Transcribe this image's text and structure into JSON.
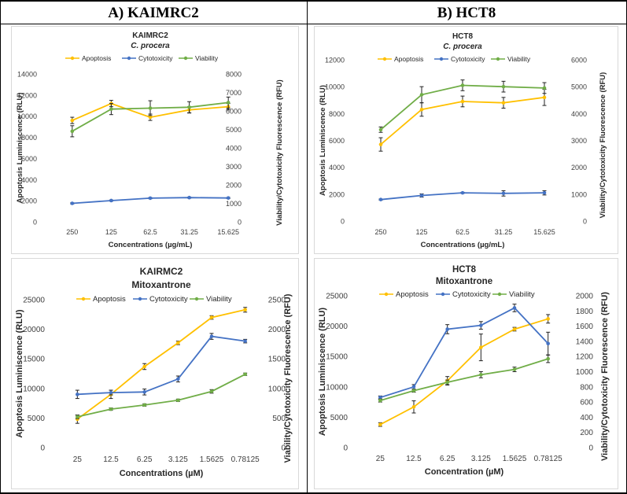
{
  "table": {
    "headers": [
      "A) KAIMRC2",
      "B) HCT8"
    ]
  },
  "colors": {
    "apoptosis": "#FFC000",
    "cytotoxicity": "#4472C4",
    "viability": "#70AD47"
  },
  "chart_data": [
    {
      "type": "line",
      "title": "KAIMRC2",
      "subtitle": "C. procera",
      "subtitle_italic": true,
      "categories": [
        "250",
        "125",
        "62.5",
        "31.25",
        "15.625"
      ],
      "xlabel": "Concentrations (µg/mL)",
      "ylabel": "Apoptosis Luminiscence (RLU)",
      "y2label": "Viability/Cytotoxicity Fluorescence (RFU)",
      "ylim": [
        0,
        14000
      ],
      "yticks": [
        "0",
        "2000",
        "4000",
        "6000",
        "8000",
        "10000",
        "12000",
        "14000"
      ],
      "y2lim": [
        0,
        8000
      ],
      "y2ticks": [
        "0",
        "1000",
        "2000",
        "3000",
        "4000",
        "5000",
        "6000",
        "7000",
        "8000"
      ],
      "series": [
        {
          "name": "Apoptosis",
          "axis": "left",
          "values": [
            9600,
            11200,
            9900,
            10600,
            10900
          ],
          "errors": [
            300,
            300,
            300,
            300,
            300
          ]
        },
        {
          "name": "Cytotoxicity",
          "axis": "right",
          "values": [
            1000,
            1150,
            1280,
            1310,
            1290
          ],
          "errors": [
            30,
            30,
            30,
            30,
            30
          ]
        },
        {
          "name": "Viability",
          "axis": "right",
          "values": [
            4900,
            6100,
            6150,
            6200,
            6450
          ],
          "errors": [
            300,
            300,
            400,
            300,
            300
          ]
        }
      ]
    },
    {
      "type": "line",
      "title": "HCT8",
      "subtitle": "C. procera",
      "subtitle_italic": true,
      "categories": [
        "250",
        "125",
        "62.5",
        "31.25",
        "15.625"
      ],
      "xlabel": "Concentrations (µg/mL)",
      "ylabel": "Apoptosis Luminiscence (RLU)",
      "y2label": "Viability/Cytotoxicity Fluorescence (RFU)",
      "ylim": [
        0,
        12000
      ],
      "yticks": [
        "0",
        "2000",
        "4000",
        "6000",
        "8000",
        "10000",
        "12000"
      ],
      "y2lim": [
        0,
        6000
      ],
      "y2ticks": [
        "0",
        "1000",
        "2000",
        "3000",
        "4000",
        "5000",
        "6000"
      ],
      "series": [
        {
          "name": "Apoptosis",
          "axis": "left",
          "values": [
            5700,
            8300,
            8900,
            8800,
            9200
          ],
          "errors": [
            500,
            500,
            400,
            400,
            600
          ]
        },
        {
          "name": "Cytotoxicity",
          "axis": "right",
          "values": [
            800,
            950,
            1050,
            1030,
            1050
          ],
          "errors": [
            20,
            60,
            20,
            100,
            80
          ]
        },
        {
          "name": "Viability",
          "axis": "right",
          "values": [
            3400,
            4700,
            5050,
            5000,
            4950
          ],
          "errors": [
            100,
            300,
            200,
            200,
            200
          ]
        }
      ]
    },
    {
      "type": "line",
      "title": "KAIRMC2",
      "subtitle": "Mitoxantrone",
      "subtitle_italic": false,
      "categories": [
        "25",
        "12.5",
        "6.25",
        "3.125",
        "1.5625",
        "0.78125"
      ],
      "xlabel": "Concentrations (µM)",
      "ylabel": "Apoptosis Luminiscence (RLU)",
      "y2label": "Viability/Cytotoxicity Fluorescence (RFU)",
      "ylim": [
        0,
        25000
      ],
      "yticks": [
        "0",
        "5000",
        "10000",
        "15000",
        "20000",
        "25000"
      ],
      "y2lim": [
        0,
        2500
      ],
      "y2ticks": [
        "0",
        "500",
        "1000",
        "1500",
        "2000",
        "2500"
      ],
      "series": [
        {
          "name": "Apoptosis",
          "axis": "left",
          "values": [
            4800,
            9000,
            13700,
            17700,
            22000,
            23300
          ],
          "errors": [
            700,
            700,
            500,
            300,
            300,
            400
          ]
        },
        {
          "name": "Cytotoxicity",
          "axis": "right",
          "values": [
            900,
            930,
            940,
            1160,
            1880,
            1800
          ],
          "errors": [
            70,
            40,
            50,
            50,
            50,
            30
          ]
        },
        {
          "name": "Viability",
          "axis": "right",
          "values": [
            520,
            650,
            720,
            800,
            950,
            1240
          ],
          "errors": [
            30,
            20,
            20,
            20,
            30,
            20
          ]
        }
      ]
    },
    {
      "type": "line",
      "title": "HCT8",
      "subtitle": "Mitoxantrone",
      "subtitle_italic": false,
      "categories": [
        "25",
        "12.5",
        "6.25",
        "3.125",
        "1.5625",
        "0.78125"
      ],
      "xlabel": "Concentration (µM)",
      "ylabel": "Apoptosis Luminiscence (RLU)",
      "y2label": "Viability/Cytotoxicity Fluorescence (RFU)",
      "ylim": [
        0,
        25000
      ],
      "yticks": [
        "0",
        "5000",
        "10000",
        "15000",
        "20000",
        "25000"
      ],
      "y2lim": [
        0,
        2000
      ],
      "y2ticks": [
        "0",
        "200",
        "400",
        "600",
        "800",
        "1000",
        "1200",
        "1400",
        "1600",
        "1800",
        "2000"
      ],
      "series": [
        {
          "name": "Apoptosis",
          "axis": "left",
          "values": [
            3800,
            6700,
            11000,
            16500,
            19500,
            21200
          ],
          "errors": [
            300,
            1000,
            700,
            2200,
            300,
            700
          ]
        },
        {
          "name": "Cytotoxicity",
          "axis": "right",
          "values": [
            660,
            800,
            1560,
            1610,
            1840,
            1370
          ],
          "errors": [
            20,
            30,
            60,
            50,
            50,
            150
          ]
        },
        {
          "name": "Viability",
          "axis": "right",
          "values": [
            620,
            750,
            860,
            960,
            1030,
            1170
          ],
          "errors": [
            20,
            20,
            30,
            40,
            30,
            50
          ]
        }
      ]
    }
  ]
}
